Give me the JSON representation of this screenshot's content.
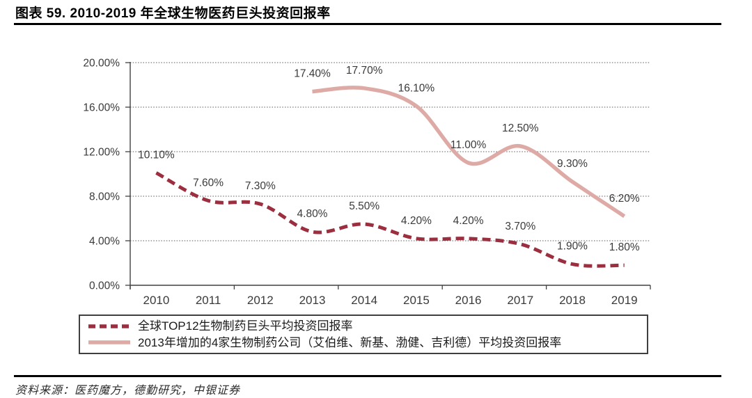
{
  "figure": {
    "title": "图表 59. 2010-2019 年全球生物医药巨头投资回报率",
    "source": "资料来源：医药魔方，德勤研究，中银证券"
  },
  "chart_data": {
    "type": "line",
    "title": "2010-2019 年全球生物医药巨头投资回报率",
    "categories": [
      "2010",
      "2011",
      "2012",
      "2013",
      "2014",
      "2015",
      "2016",
      "2017",
      "2018",
      "2019"
    ],
    "series": [
      {
        "name": "全球TOP12生物制药巨头平均投资回报率",
        "values": [
          10.1,
          7.6,
          7.3,
          4.8,
          5.5,
          4.2,
          4.2,
          3.7,
          1.9,
          1.8
        ],
        "style": "dashed",
        "color": "#9B2F3F"
      },
      {
        "name": "2013年增加的4家生物制药公司（艾伯维、新基、渤健、吉利德）平均投资回报率",
        "values": [
          null,
          null,
          null,
          17.4,
          17.7,
          16.1,
          11.0,
          12.5,
          9.3,
          6.2
        ],
        "style": "solid",
        "color": "#DEAAA6"
      }
    ],
    "xlabel": "",
    "ylabel": "",
    "ylim": [
      0,
      20
    ],
    "ytick_step": 4,
    "ytick_labels": [
      "0.00%",
      "4.00%",
      "8.00%",
      "12.00%",
      "16.00%",
      "20.00%"
    ],
    "data_label_format": "0.00%",
    "grid": "horizontal-dotted",
    "legend_position": "bottom-boxed",
    "xtick_mark_interval": 2,
    "smoothed_lines": true
  }
}
